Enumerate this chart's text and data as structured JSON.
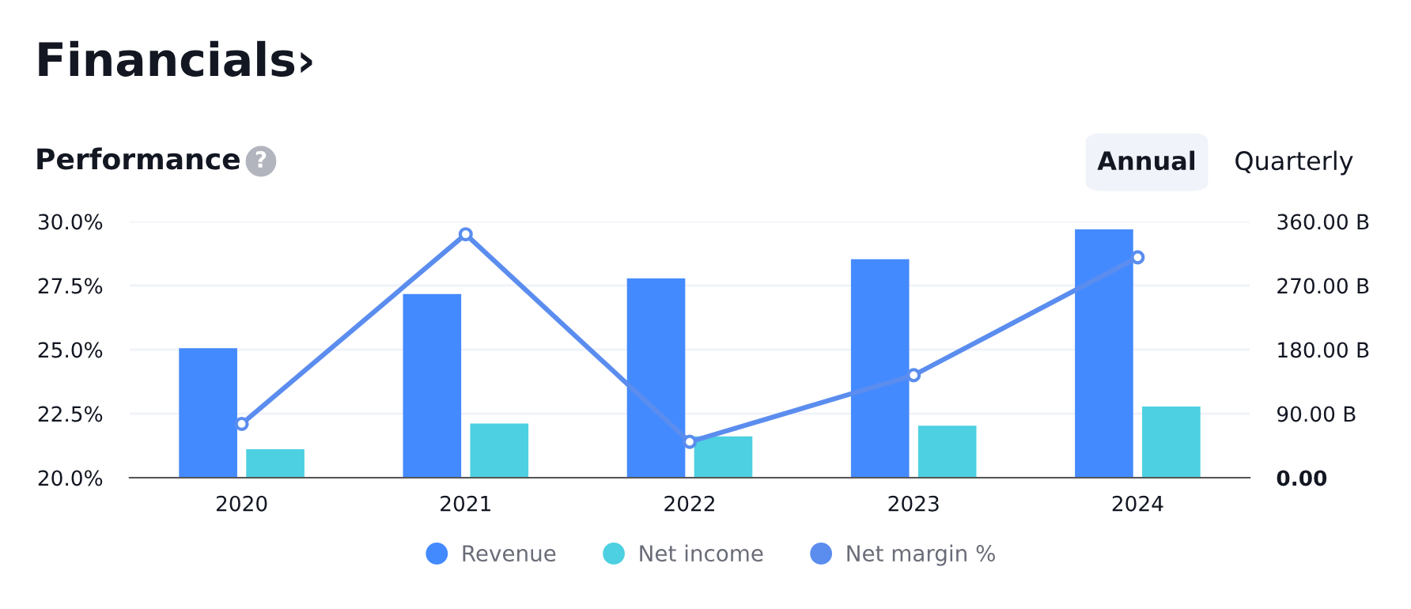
{
  "chart_data": {
    "type": "bar",
    "title": "Financials›",
    "subtitle": "Performance",
    "annotations": [
      "?",
      "Annual",
      "Quarterly"
    ],
    "categories": [
      "2020",
      "2021",
      "2022",
      "2023",
      "2024"
    ],
    "series": [
      {
        "name": "Revenue",
        "axis": "y2",
        "color": "#448aff",
        "values": [
          182,
          258,
          280,
          307,
          349
        ]
      },
      {
        "name": "Net income",
        "axis": "y2",
        "color": "#4dd0e1",
        "values": [
          40,
          76,
          58,
          73,
          100
        ]
      },
      {
        "name": "Net margin %",
        "type": "line",
        "axis": "y",
        "color": "#5b8def",
        "marker": "circle",
        "values": [
          22.1,
          29.5,
          21.4,
          24.0,
          28.6
        ]
      }
    ],
    "ylim": [
      20,
      30
    ],
    "yticks": [
      {
        "value": 20,
        "label": "20.0%"
      },
      {
        "value": 22.5,
        "label": "22.5%"
      },
      {
        "value": 25,
        "label": "25.0%"
      },
      {
        "value": 27.5,
        "label": "27.5%"
      },
      {
        "value": 30,
        "label": "30.0%"
      }
    ],
    "y2lim": [
      0,
      360
    ],
    "y2ticks": [
      {
        "value": 0,
        "label": "0.00"
      },
      {
        "value": 90,
        "label": "90.00 B"
      },
      {
        "value": 180,
        "label": "180.00 B"
      },
      {
        "value": 270,
        "label": "270.00 B"
      },
      {
        "value": 360,
        "label": "360.00 B"
      }
    ],
    "grid": "y",
    "legend": "bottom"
  }
}
